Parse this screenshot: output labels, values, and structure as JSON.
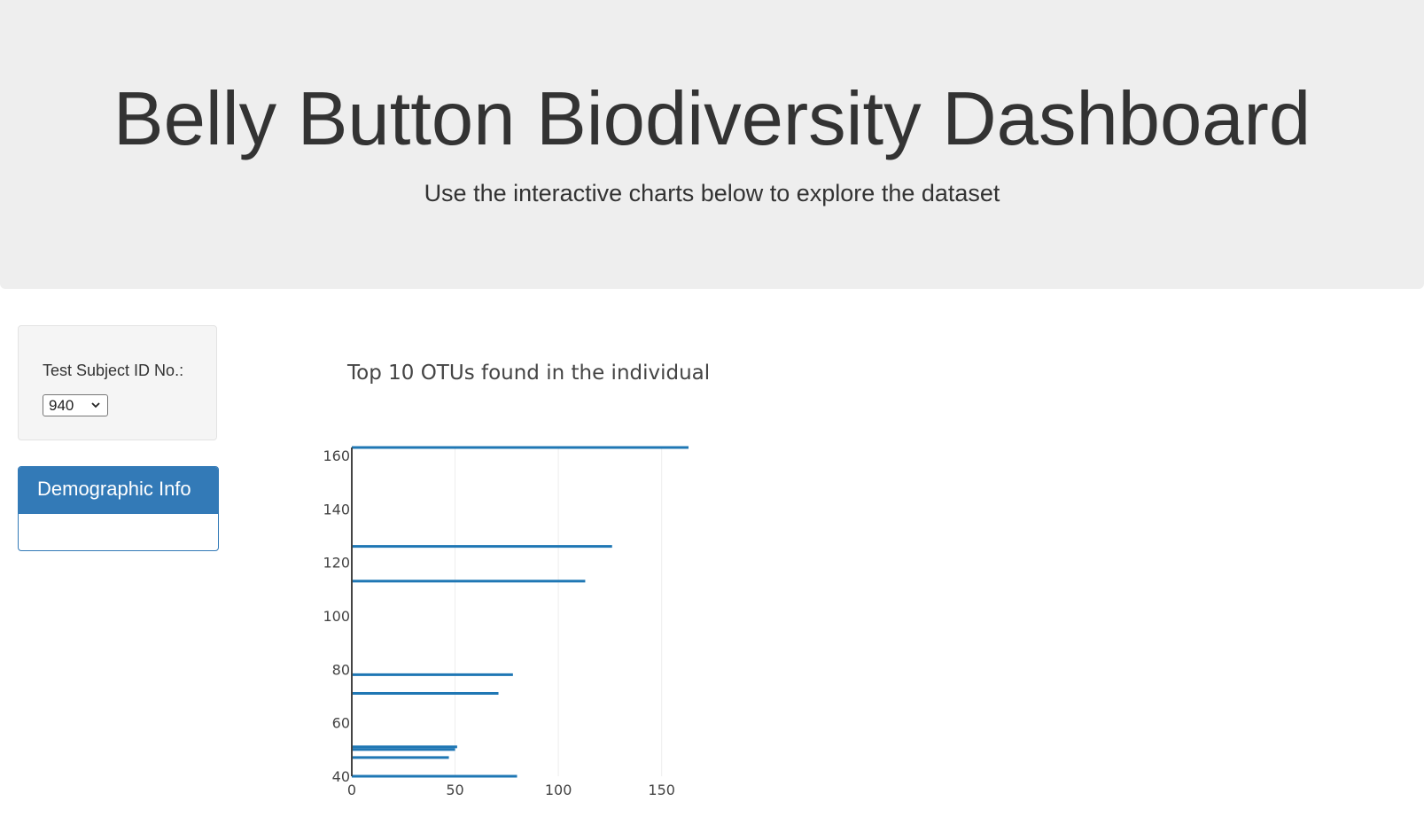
{
  "header": {
    "title": "Belly Button Biodiversity Dashboard",
    "subtitle": "Use the interactive charts below to explore the dataset"
  },
  "selector": {
    "label": "Test Subject ID No.:",
    "selected_value": "940"
  },
  "demographic_panel": {
    "heading": "Demographic Info"
  },
  "colors": {
    "bar": "#1f77b4",
    "grid": "#eeeeee",
    "panel_blue": "#337ab7"
  },
  "chart_data": {
    "type": "bar",
    "orientation": "horizontal",
    "title": "Top 10 OTUs found in the individual",
    "xlabel": "",
    "ylabel": "",
    "xlim": [
      0,
      163
    ],
    "ylim": [
      40,
      163
    ],
    "x_ticks": [
      0,
      50,
      100,
      150
    ],
    "y_ticks": [
      40,
      60,
      80,
      100,
      120,
      140,
      160
    ],
    "grid": "vertical",
    "bars": [
      {
        "y": 163,
        "value": 163
      },
      {
        "y": 126,
        "value": 126
      },
      {
        "y": 113,
        "value": 113
      },
      {
        "y": 78,
        "value": 78
      },
      {
        "y": 71,
        "value": 71
      },
      {
        "y": 51,
        "value": 51
      },
      {
        "y": 50,
        "value": 50
      },
      {
        "y": 47,
        "value": 47
      },
      {
        "y": 40,
        "value": 80
      }
    ]
  }
}
